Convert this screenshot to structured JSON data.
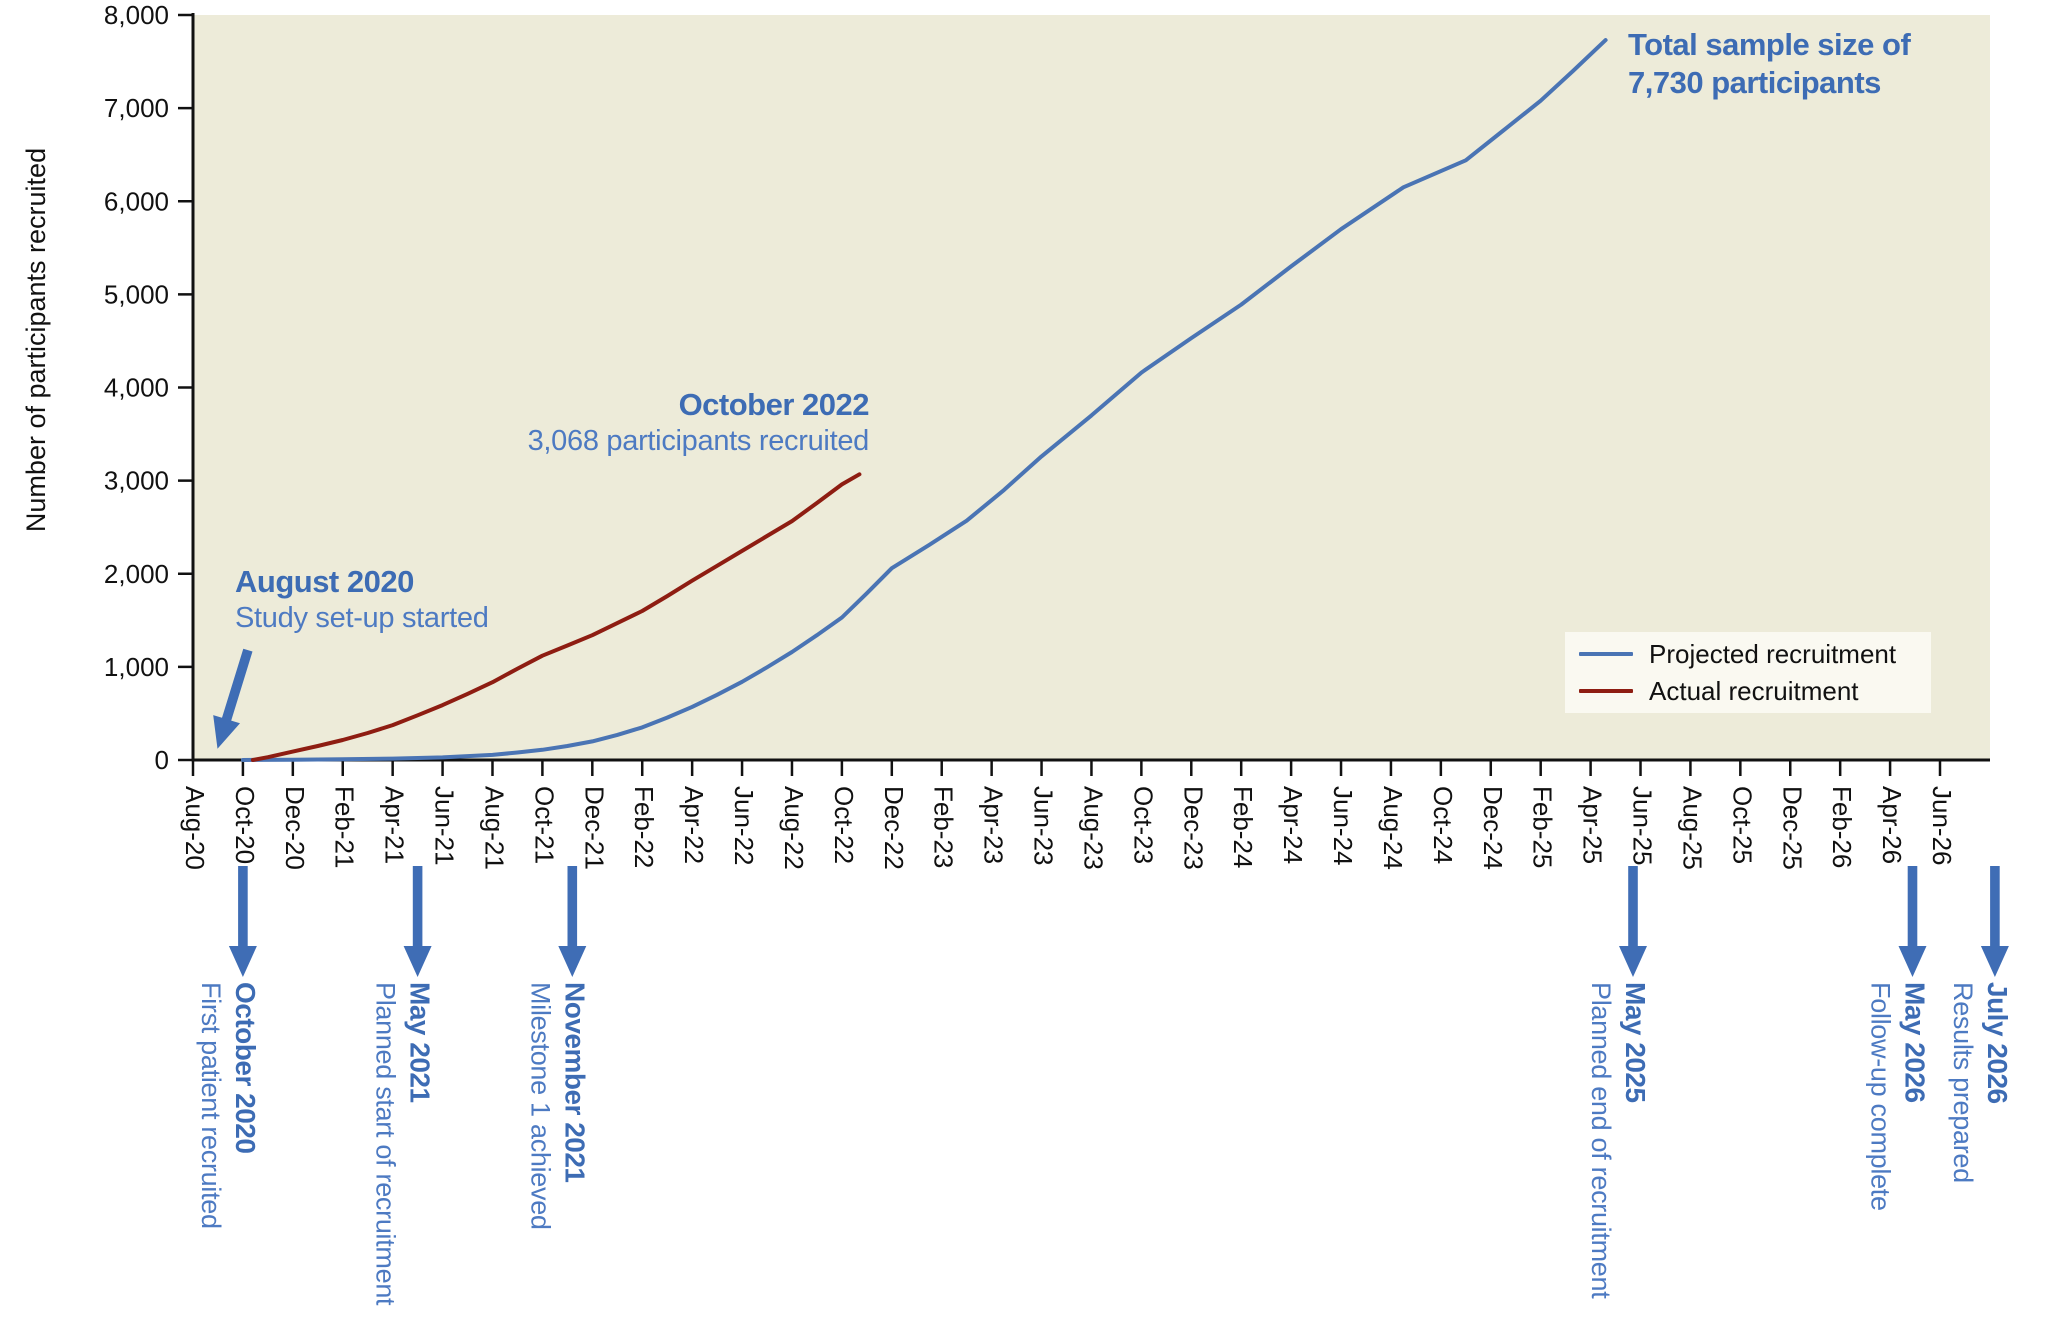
{
  "colors": {
    "projected_line": "#4a74b4",
    "actual_line": "#8e1d12",
    "annotation_bold_blue": "#3d6cb4",
    "annotation_regular_blue": "#4d7ac2",
    "arrow_blue": "#3f6db5",
    "plot_background": "#edebd9",
    "legend_background": "#faf9f1",
    "axis_color": "#111111"
  },
  "chart_data": {
    "type": "line",
    "title": "",
    "xlabel": "",
    "ylabel": "Number of participants recruited",
    "ylim": [
      0,
      8000
    ],
    "grid": false,
    "legend_position": "right-middle",
    "y_tick_labels": [
      "0",
      "1,000",
      "2,000",
      "3,000",
      "4,000",
      "5,000",
      "6,000",
      "7,000",
      "8,000"
    ],
    "x_tick_labels": [
      "Aug-20",
      "Oct-20",
      "Dec-20",
      "Feb-21",
      "Apr-21",
      "Jun-21",
      "Aug-21",
      "Oct-21",
      "Dec-21",
      "Feb-22",
      "Apr-22",
      "Jun-22",
      "Aug-22",
      "Oct-22",
      "Dec-22",
      "Feb-23",
      "Apr-23",
      "Jun-23",
      "Aug-23",
      "Oct-23",
      "Dec-23",
      "Feb-24",
      "Apr-24",
      "Jun-24",
      "Aug-24",
      "Oct-24",
      "Dec-24",
      "Feb-25",
      "Apr-25",
      "Jun-25",
      "Aug-25",
      "Oct-25",
      "Dec-25",
      "Feb-26",
      "Apr-26",
      "Jun-26"
    ],
    "x_unit": "months since Aug-2020, ticks every 2 months",
    "legend": {
      "items": [
        {
          "label": "Projected recruitment",
          "color": "#4a74b4"
        },
        {
          "label": "Actual recruitment",
          "color": "#8e1d12"
        }
      ]
    },
    "series": [
      {
        "name": "Projected recruitment",
        "color": "#4a74b4",
        "points_month_value": [
          [
            2,
            0
          ],
          [
            4,
            3
          ],
          [
            6,
            8
          ],
          [
            8,
            15
          ],
          [
            10,
            28
          ],
          [
            12,
            55
          ],
          [
            13,
            80
          ],
          [
            14,
            110
          ],
          [
            15,
            150
          ],
          [
            16,
            200
          ],
          [
            17,
            270
          ],
          [
            18,
            350
          ],
          [
            19,
            455
          ],
          [
            20,
            570
          ],
          [
            21,
            700
          ],
          [
            22,
            840
          ],
          [
            23,
            995
          ],
          [
            24,
            1160
          ],
          [
            25,
            1340
          ],
          [
            26,
            1530
          ],
          [
            27,
            1790
          ],
          [
            28,
            2060
          ],
          [
            29.5,
            2310
          ],
          [
            31,
            2570
          ],
          [
            32.5,
            2900
          ],
          [
            34,
            3260
          ],
          [
            36,
            3700
          ],
          [
            38,
            4160
          ],
          [
            40,
            4530
          ],
          [
            42,
            4890
          ],
          [
            44,
            5300
          ],
          [
            46,
            5700
          ],
          [
            48.5,
            6150
          ],
          [
            51,
            6440
          ],
          [
            52.5,
            6760
          ],
          [
            54,
            7080
          ],
          [
            55.3,
            7400
          ],
          [
            56.6,
            7730
          ]
        ]
      },
      {
        "name": "Actual recruitment",
        "color": "#8e1d12",
        "points_month_value": [
          [
            2.4,
            0
          ],
          [
            3,
            30
          ],
          [
            4,
            90
          ],
          [
            5,
            150
          ],
          [
            6,
            215
          ],
          [
            7,
            290
          ],
          [
            8,
            375
          ],
          [
            9,
            480
          ],
          [
            10,
            590
          ],
          [
            11,
            710
          ],
          [
            12,
            835
          ],
          [
            13,
            980
          ],
          [
            14,
            1120
          ],
          [
            15,
            1230
          ],
          [
            16,
            1340
          ],
          [
            17,
            1470
          ],
          [
            18,
            1600
          ],
          [
            19,
            1760
          ],
          [
            20,
            1925
          ],
          [
            21,
            2085
          ],
          [
            22,
            2245
          ],
          [
            23,
            2405
          ],
          [
            24,
            2565
          ],
          [
            25,
            2760
          ],
          [
            26,
            2960
          ],
          [
            26.7,
            3068
          ]
        ]
      }
    ],
    "annotations": [
      {
        "id": "study-setup",
        "title": "August 2020",
        "text": "Study set-up started",
        "arrow_from_month": 2.2,
        "arrow_from_value": 1180,
        "arrow_to_month": 0.5,
        "arrow_to_value": 120
      },
      {
        "id": "oct-2022",
        "title": "October 2022",
        "text": "3,068 participants recruited",
        "anchor_month": 26.7,
        "anchor_value": 3068
      },
      {
        "id": "total-sample",
        "title": "Total sample size of",
        "text": "7,730 participants",
        "anchor_month": 56.6,
        "anchor_value": 7730
      }
    ],
    "milestones": [
      {
        "date": "October 2020",
        "label": "First patient recruited",
        "month": 2.0
      },
      {
        "date": "May 2021",
        "label": "Planned start of recruitment",
        "month": 9.0
      },
      {
        "date": "November 2021",
        "label": "Milestone 1 achieved",
        "month": 15.2
      },
      {
        "date": "May 2025",
        "label": "Planned end of recruitment",
        "month": 57.7
      },
      {
        "date": "May 2026",
        "label": "Follow-up complete",
        "month": 68.9
      },
      {
        "date": "July 2026",
        "label": "Results prepared",
        "month": 72.2
      }
    ]
  }
}
